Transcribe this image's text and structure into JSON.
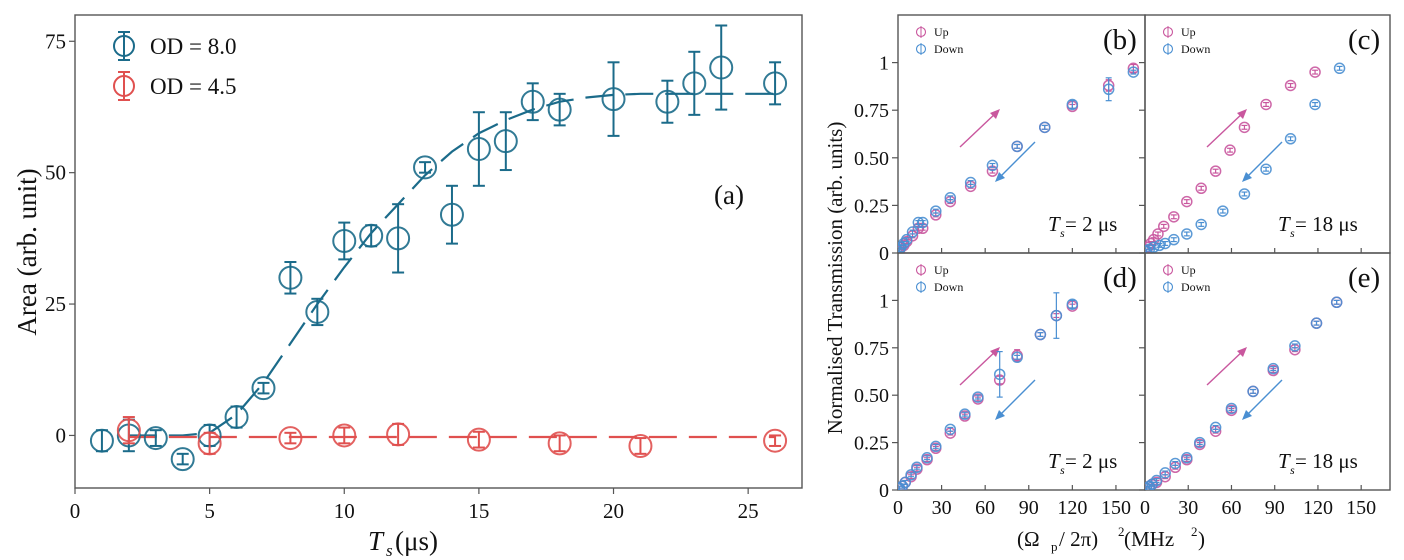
{
  "chart_data": [
    {
      "id": "a",
      "type": "scatter",
      "panel_label": "(a)",
      "xlabel": "T_s (μs)",
      "xlabel_main": "T",
      "xlabel_sub": "s",
      "xlabel_unit": " (μs)",
      "ylabel": "Area (arb. unit)",
      "xlim": [
        0,
        27
      ],
      "ylim": [
        -10,
        80
      ],
      "xticks": [
        0,
        5,
        10,
        15,
        20,
        25
      ],
      "yticks": [
        0,
        25,
        50,
        75
      ],
      "legend_position": "top-left",
      "series": [
        {
          "name": "OD = 8.0",
          "color": "#1b6b8a",
          "x": [
            1,
            2,
            3,
            4,
            5,
            6,
            7,
            8,
            9,
            10,
            11,
            12,
            13,
            14,
            15,
            16,
            17,
            18,
            20,
            22,
            23,
            24,
            26
          ],
          "y": [
            -1,
            0,
            -0.5,
            -4.5,
            0,
            3.5,
            9,
            30,
            23.5,
            37,
            38,
            37.5,
            51,
            42,
            54.5,
            56,
            63.5,
            62,
            64,
            63.5,
            67,
            70,
            67
          ],
          "err": [
            2,
            3,
            1.5,
            1,
            2,
            2,
            1,
            3,
            2.5,
            3.5,
            2,
            6.5,
            1,
            5.5,
            7,
            5.5,
            3.5,
            3,
            7,
            4,
            6,
            8,
            4
          ],
          "fit": {
            "x": [
              2,
              3,
              4,
              5,
              6,
              7,
              8,
              9,
              10,
              11,
              12,
              13,
              14,
              15,
              16,
              17,
              18,
              19,
              20,
              21,
              22,
              23,
              24,
              25,
              26
            ],
            "y": [
              0,
              0,
              0,
              0.5,
              4,
              10,
              17.5,
              25,
              32,
              38.5,
              44,
              49.5,
              54,
              57.5,
              60,
              62,
              63.5,
              64.3,
              64.8,
              65,
              65,
              65,
              65,
              65,
              65
            ]
          }
        },
        {
          "name": "OD = 4.5",
          "color": "#e0504f",
          "x": [
            2,
            5,
            8,
            10,
            12,
            15,
            18,
            21,
            26
          ],
          "y": [
            1,
            -1.5,
            -0.5,
            0,
            0.2,
            -0.8,
            -1.5,
            -2,
            -1
          ],
          "err": [
            2.5,
            2,
            1,
            1.5,
            2,
            1.5,
            1.5,
            1.5,
            1
          ],
          "fit": {
            "x": [
              2,
              26
            ],
            "y": [
              -0.3,
              -0.3
            ]
          }
        }
      ]
    },
    {
      "id": "b",
      "type": "scatter",
      "panel_label": "(b)",
      "annotation": "T_s = 2 μs",
      "annotation_main": "T",
      "annotation_sub": "s",
      "annotation_rest": " = 2 μs",
      "xlim": [
        0,
        170
      ],
      "ylim": [
        0,
        1.25
      ],
      "yticks": [
        0,
        0.25,
        0.5,
        0.75,
        1
      ],
      "ytick_labels": [
        "0",
        "0.25",
        "0.50",
        "0.75",
        "1"
      ],
      "xticks": [
        0,
        30,
        60,
        90,
        120,
        150
      ],
      "legend_position": "top-left",
      "series": [
        {
          "name": "Up",
          "color": "#c9579e",
          "x": [
            1,
            2,
            4,
            6,
            10,
            14,
            17,
            26,
            36,
            50,
            65,
            82,
            101,
            120,
            145,
            162
          ],
          "y": [
            0.01,
            0.03,
            0.04,
            0.06,
            0.09,
            0.13,
            0.13,
            0.2,
            0.27,
            0.35,
            0.43,
            0.56,
            0.66,
            0.77,
            0.88,
            0.97
          ],
          "err": [
            0.01,
            0.01,
            0.01,
            0.01,
            0.01,
            0.01,
            0.01,
            0.01,
            0.01,
            0.01,
            0.01,
            0.01,
            0.01,
            0.01,
            0.03,
            0.02
          ]
        },
        {
          "name": "Down",
          "color": "#4a8fd2",
          "x": [
            1,
            2,
            4,
            6,
            10,
            14,
            17,
            26,
            36,
            50,
            65,
            82,
            101,
            120,
            145,
            162,
            180
          ],
          "y": [
            0.02,
            0.03,
            0.05,
            0.07,
            0.11,
            0.16,
            0.16,
            0.22,
            0.29,
            0.37,
            0.46,
            0.56,
            0.66,
            0.78,
            0.86,
            0.95,
            0.99
          ],
          "err": [
            0.01,
            0.01,
            0.01,
            0.01,
            0.01,
            0.01,
            0.01,
            0.01,
            0.01,
            0.01,
            0.01,
            0.01,
            0.01,
            0.02,
            0.06,
            0.01,
            0.01
          ]
        }
      ]
    },
    {
      "id": "c",
      "type": "scatter",
      "panel_label": "(c)",
      "annotation": "T_s = 18 μs",
      "annotation_main": "T",
      "annotation_sub": "s",
      "annotation_rest": " = 18 μs",
      "xlim": [
        0,
        170
      ],
      "ylim": [
        0,
        1.25
      ],
      "yticks": [
        0,
        0.25,
        0.5,
        0.75,
        1
      ],
      "xticks": [
        0,
        30,
        60,
        90,
        120,
        150
      ],
      "legend_position": "top-left",
      "series": [
        {
          "name": "Up",
          "color": "#c9579e",
          "x": [
            1,
            2,
            4,
            6,
            9,
            13,
            20,
            29,
            39,
            49,
            59,
            69,
            84,
            101,
            118
          ],
          "y": [
            0.01,
            0.03,
            0.05,
            0.07,
            0.1,
            0.14,
            0.19,
            0.27,
            0.34,
            0.43,
            0.54,
            0.66,
            0.78,
            0.88,
            0.95
          ],
          "err": [
            0.01,
            0.01,
            0.01,
            0.01,
            0.01,
            0.01,
            0.01,
            0.01,
            0.01,
            0.01,
            0.01,
            0.01,
            0.01,
            0.01,
            0.01
          ]
        },
        {
          "name": "Down",
          "color": "#4a8fd2",
          "x": [
            1,
            3,
            6,
            10,
            14,
            20,
            29,
            39,
            54,
            69,
            84,
            101,
            118,
            135
          ],
          "y": [
            0.01,
            0.02,
            0.03,
            0.04,
            0.05,
            0.07,
            0.1,
            0.15,
            0.22,
            0.31,
            0.44,
            0.6,
            0.78,
            0.97
          ],
          "err": [
            0.01,
            0.01,
            0.01,
            0.01,
            0.01,
            0.01,
            0.01,
            0.01,
            0.01,
            0.01,
            0.01,
            0.01,
            0.01,
            0.01
          ]
        }
      ]
    },
    {
      "id": "d",
      "type": "scatter",
      "panel_label": "(d)",
      "annotation": "T_s = 2 μs",
      "annotation_main": "T",
      "annotation_sub": "s",
      "annotation_rest": " = 2 μs",
      "xlim": [
        0,
        170
      ],
      "ylim": [
        0,
        1.25
      ],
      "yticks": [
        0,
        0.25,
        0.5,
        0.75,
        1
      ],
      "ytick_labels": [
        "0",
        "0.25",
        "0.50",
        "0.75",
        "1"
      ],
      "xticks": [
        0,
        30,
        60,
        90,
        120,
        150
      ],
      "xtick_labels": [
        "0",
        "30",
        "60",
        "90",
        "120",
        "150"
      ],
      "legend_position": "top-left",
      "series": [
        {
          "name": "Up",
          "color": "#c9579e",
          "x": [
            1,
            3,
            5,
            9,
            13,
            20,
            26,
            36,
            46,
            55,
            70,
            82,
            98,
            109,
            120
          ],
          "y": [
            0.01,
            0.02,
            0.04,
            0.07,
            0.11,
            0.16,
            0.22,
            0.3,
            0.39,
            0.48,
            0.58,
            0.71,
            0.82,
            0.92,
            0.97
          ],
          "err": [
            0.01,
            0.01,
            0.01,
            0.01,
            0.01,
            0.01,
            0.01,
            0.01,
            0.01,
            0.01,
            0.02,
            0.03,
            0.01,
            0.01,
            0.01
          ]
        },
        {
          "name": "Down",
          "color": "#4a8fd2",
          "x": [
            1,
            3,
            5,
            9,
            13,
            20,
            26,
            36,
            46,
            55,
            70,
            82,
            98,
            109,
            120
          ],
          "y": [
            0.01,
            0.02,
            0.04,
            0.08,
            0.12,
            0.17,
            0.23,
            0.32,
            0.4,
            0.49,
            0.61,
            0.7,
            0.82,
            0.92,
            0.98
          ],
          "err": [
            0.01,
            0.01,
            0.01,
            0.01,
            0.01,
            0.01,
            0.01,
            0.01,
            0.01,
            0.01,
            0.12,
            0.01,
            0.01,
            0.12,
            0.02
          ]
        }
      ]
    },
    {
      "id": "e",
      "type": "scatter",
      "panel_label": "(e)",
      "annotation": "T_s = 18 μs",
      "annotation_main": "T",
      "annotation_sub": "s",
      "annotation_rest": " = 18 μs",
      "xlim": [
        0,
        170
      ],
      "ylim": [
        0,
        1.25
      ],
      "yticks": [
        0,
        0.25,
        0.5,
        0.75,
        1
      ],
      "xticks": [
        0,
        30,
        60,
        90,
        120,
        150
      ],
      "xtick_labels": [
        "0",
        "30",
        "60",
        "90",
        "120",
        "150"
      ],
      "legend_position": "top-left",
      "series": [
        {
          "name": "Up",
          "color": "#c9579e",
          "x": [
            1,
            3,
            5,
            8,
            14,
            21,
            29,
            38,
            49,
            60,
            75,
            89,
            104,
            119,
            133
          ],
          "y": [
            0.01,
            0.02,
            0.03,
            0.04,
            0.07,
            0.12,
            0.16,
            0.24,
            0.31,
            0.42,
            0.52,
            0.63,
            0.74,
            0.88,
            0.99
          ],
          "err": [
            0.01,
            0.01,
            0.01,
            0.01,
            0.01,
            0.01,
            0.01,
            0.01,
            0.01,
            0.01,
            0.01,
            0.01,
            0.01,
            0.01,
            0.01
          ]
        },
        {
          "name": "Down",
          "color": "#4a8fd2",
          "x": [
            1,
            3,
            5,
            8,
            14,
            21,
            29,
            38,
            49,
            60,
            75,
            89,
            104,
            119,
            133
          ],
          "y": [
            0.01,
            0.02,
            0.03,
            0.05,
            0.09,
            0.14,
            0.17,
            0.25,
            0.33,
            0.43,
            0.52,
            0.64,
            0.76,
            0.88,
            0.99
          ],
          "err": [
            0.01,
            0.01,
            0.01,
            0.01,
            0.01,
            0.01,
            0.01,
            0.01,
            0.01,
            0.01,
            0.01,
            0.01,
            0.01,
            0.01,
            0.01
          ]
        }
      ]
    }
  ],
  "shared": {
    "right_ylabel": "Normalised Transmission (arb. units)",
    "right_xlabel_prefix": "(Ω",
    "right_xlabel_sub": "p",
    "right_xlabel_mid": "/ 2π)",
    "right_xlabel_sup": "2",
    "right_xlabel_unit": " (MHz",
    "right_xlabel_unit_sup": "2",
    "right_xlabel_close": ")",
    "arrow_up_color": "#c9579e",
    "arrow_down_color": "#4a8fd2"
  }
}
